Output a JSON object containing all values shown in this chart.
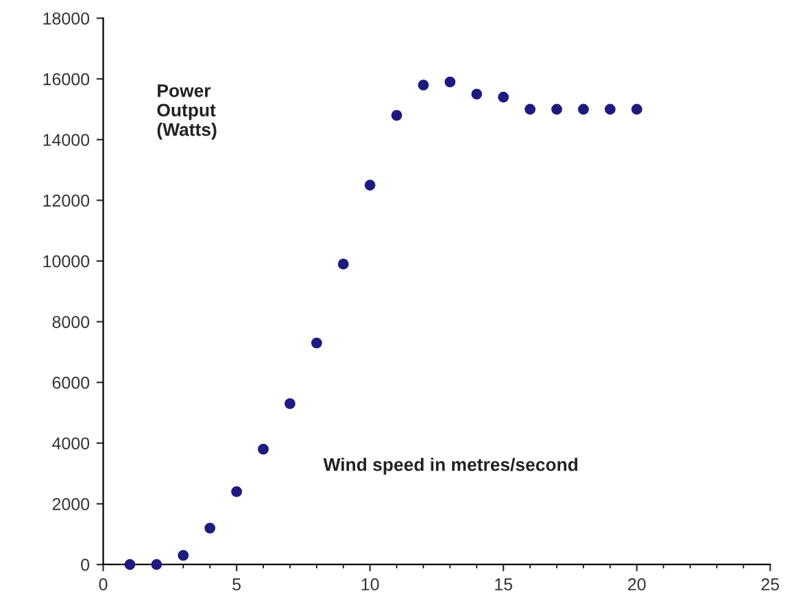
{
  "chart_data": {
    "type": "scatter",
    "x": [
      1,
      2,
      3,
      4,
      5,
      6,
      7,
      8,
      9,
      10,
      11,
      12,
      13,
      14,
      15,
      16,
      17,
      18,
      19,
      20
    ],
    "values": [
      0,
      0,
      300,
      1200,
      2400,
      3800,
      5300,
      7300,
      9900,
      12500,
      14800,
      15800,
      15900,
      15500,
      15400,
      15000,
      15000,
      15000,
      15000,
      15000
    ],
    "color": "#1c1c80",
    "marker": "circle",
    "xlim": [
      0,
      25
    ],
    "xticks": [
      0,
      5,
      10,
      15,
      20,
      25
    ],
    "ylim": [
      0,
      18000
    ],
    "yticks": [
      0,
      2000,
      4000,
      6000,
      8000,
      10000,
      12000,
      14000,
      16000,
      18000
    ],
    "grid": false,
    "legend": false,
    "annotations": [
      "Power\nOutput\n(Watts)",
      "Wind speed in metres/second"
    ]
  }
}
